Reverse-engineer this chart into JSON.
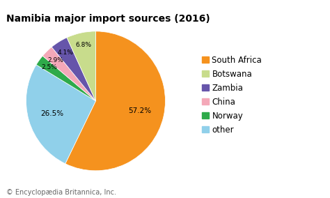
{
  "title": "Namibia major import sources (2016)",
  "footnote": "© Encyclopædia Britannica, Inc.",
  "labels": [
    "South Africa",
    "Botswana",
    "Zambia",
    "China",
    "Norway",
    "other"
  ],
  "values": [
    57.2,
    6.8,
    4.1,
    2.9,
    2.5,
    26.5
  ],
  "colors": [
    "#f5921e",
    "#c8dc8c",
    "#6655aa",
    "#f4a8b8",
    "#2eaa4a",
    "#90d0ea"
  ],
  "pct_labels": [
    "57.2%",
    "6.8%",
    "4.1%",
    "2.9%",
    "2.5%",
    "26.5%"
  ],
  "background_color": "#ffffff",
  "title_fontsize": 10,
  "legend_fontsize": 8.5,
  "footnote_fontsize": 7
}
